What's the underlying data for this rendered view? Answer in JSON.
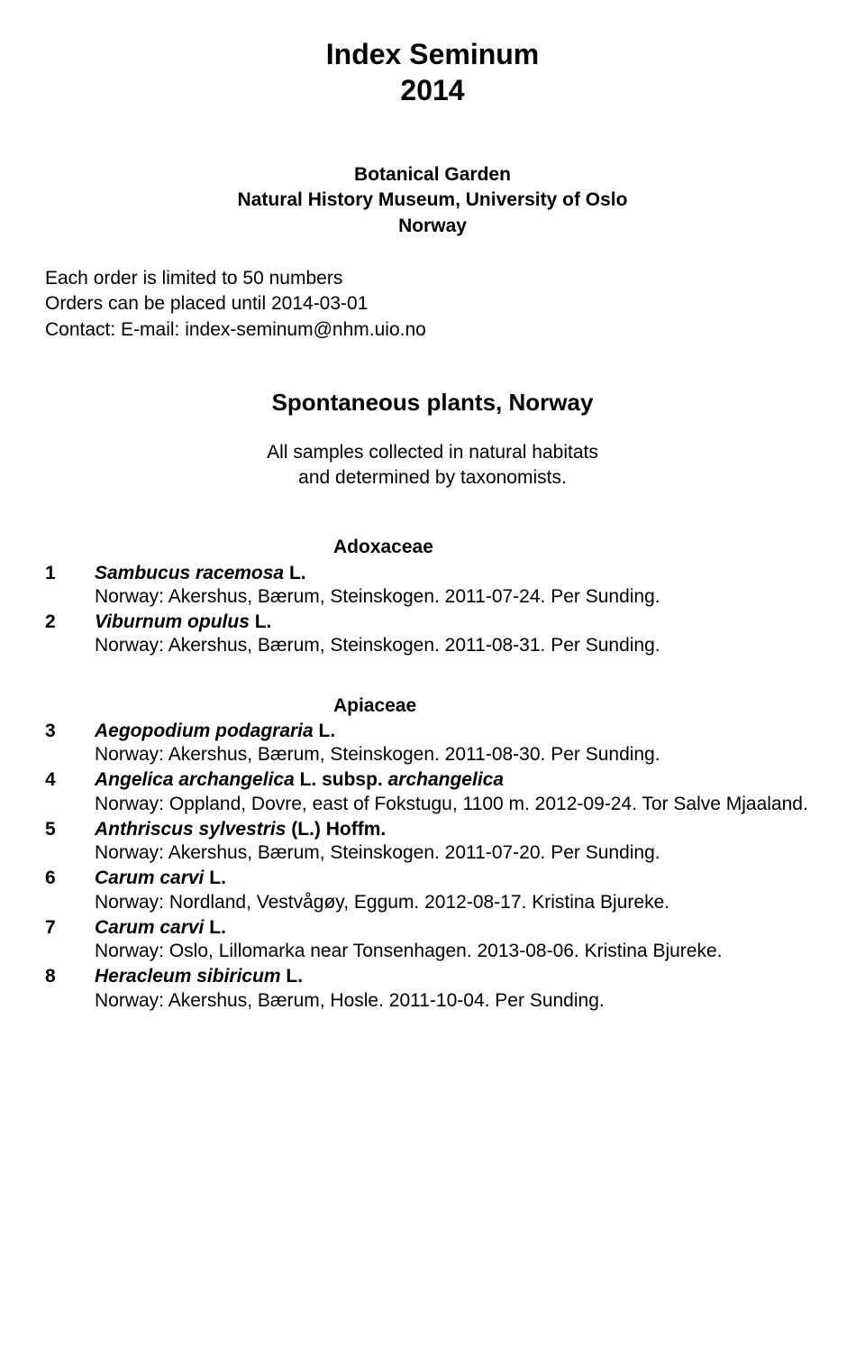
{
  "title_line1": "Index Seminum",
  "title_line2": "2014",
  "subtitle_line1": "Botanical Garden",
  "subtitle_line2": "Natural History Museum, University of Oslo",
  "subtitle_line3": "Norway",
  "info_line1": "Each order is limited to 50 numbers",
  "info_line2": "Orders can be placed until 2014-03-01",
  "info_line3": "Contact: E-mail: index-seminum@nhm.uio.no",
  "section_heading": "Spontaneous plants, Norway",
  "section_sub_line1": "All samples collected in natural habitats",
  "section_sub_line2": "and determined by taxonomists.",
  "families": [
    {
      "family": "Adoxaceae",
      "entries": [
        {
          "num": "1",
          "epithet": "Sambucus racemosa",
          "authority": " L.",
          "locality": "Norway: Akershus, Bærum, Steinskogen. 2011-07-24. Per Sunding."
        },
        {
          "num": "2",
          "epithet": "Viburnum opulus",
          "authority": " L.",
          "locality": "Norway: Akershus, Bærum, Steinskogen. 2011-08-31. Per Sunding."
        }
      ]
    },
    {
      "family": "Apiaceae",
      "entries": [
        {
          "num": "3",
          "epithet": "Aegopodium podagraria",
          "authority": " L.",
          "locality": "Norway: Akershus, Bærum, Steinskogen. 2011-08-30. Per Sunding."
        },
        {
          "num": "4",
          "epithet": "Angelica archangelica",
          "authority": " L. subsp. ",
          "epithet2": "archangelica",
          "locality": "Norway: Oppland, Dovre, east of Fokstugu, 1100 m. 2012-09-24. Tor Salve Mjaaland."
        },
        {
          "num": "5",
          "epithet": "Anthriscus sylvestris",
          "authority": " (L.) Hoffm.",
          "locality": "Norway: Akershus, Bærum, Steinskogen. 2011-07-20. Per Sunding."
        },
        {
          "num": "6",
          "epithet": "Carum carvi",
          "authority": " L.",
          "locality": "Norway: Nordland, Vestvågøy, Eggum. 2012-08-17. Kristina Bjureke."
        },
        {
          "num": "7",
          "epithet": "Carum carvi",
          "authority": " L.",
          "locality": "Norway: Oslo, Lillomarka near Tonsenhagen. 2013-08-06. Kristina Bjureke."
        },
        {
          "num": "8",
          "epithet": "Heracleum sibiricum",
          "authority": " L.",
          "locality": "Norway: Akershus, Bærum, Hosle. 2011-10-04. Per Sunding."
        }
      ]
    }
  ]
}
